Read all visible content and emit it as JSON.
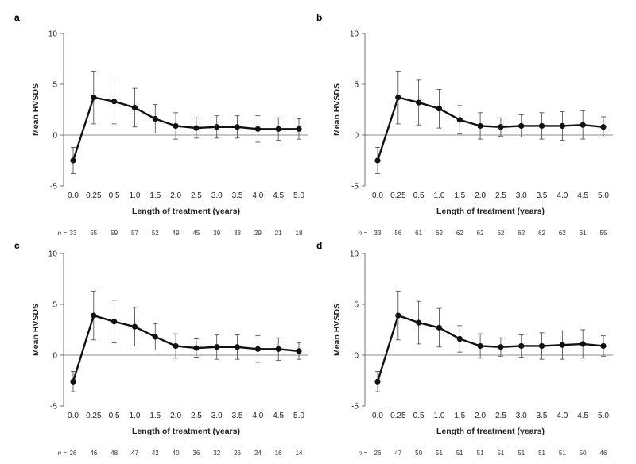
{
  "figure": {
    "n_prefix": "n ="
  },
  "chart_data": [
    {
      "type": "line",
      "panel_label": "a",
      "categories": [
        "0.0",
        "0.25",
        "0.5",
        "1.0",
        "1.5",
        "2.0",
        "2.5",
        "3.0",
        "3.5",
        "4.0",
        "4.5",
        "5.0"
      ],
      "series": [
        {
          "values": [
            -2.5,
            3.7,
            3.3,
            2.7,
            1.6,
            0.9,
            0.7,
            0.8,
            0.8,
            0.6,
            0.6,
            0.6
          ],
          "error": [
            1.3,
            2.6,
            2.2,
            1.9,
            1.4,
            1.3,
            1.0,
            1.1,
            1.1,
            1.3,
            1.1,
            1.0
          ]
        }
      ],
      "n": [
        "33",
        "55",
        "59",
        "57",
        "52",
        "49",
        "45",
        "39",
        "33",
        "29",
        "21",
        "18"
      ],
      "xlabel": "Length of treatment (years)",
      "ylabel": "Mean HVSDS",
      "ylim": [
        -5,
        10
      ],
      "yticks": [
        "10",
        "5",
        "0",
        "-5"
      ]
    },
    {
      "type": "line",
      "panel_label": "b",
      "categories": [
        "0.0",
        "0.25",
        "0.5",
        "1.0",
        "1.5",
        "2.0",
        "2.5",
        "3.0",
        "3.5",
        "4.0",
        "4.5",
        "5.0"
      ],
      "series": [
        {
          "values": [
            -2.5,
            3.7,
            3.2,
            2.6,
            1.5,
            0.9,
            0.8,
            0.9,
            0.9,
            0.9,
            1.0,
            0.8
          ],
          "error": [
            1.3,
            2.6,
            2.2,
            1.9,
            1.4,
            1.3,
            0.9,
            1.1,
            1.3,
            1.4,
            1.4,
            1.0
          ]
        }
      ],
      "n": [
        "33",
        "56",
        "61",
        "62",
        "62",
        "62",
        "62",
        "62",
        "62",
        "62",
        "61",
        "55"
      ],
      "xlabel": "Length of treatment (years)",
      "ylabel": "Mean HVSDS",
      "ylim": [
        -5,
        10
      ],
      "yticks": [
        "10",
        "5",
        "0",
        "-5"
      ]
    },
    {
      "type": "line",
      "panel_label": "c",
      "categories": [
        "0.0",
        "0.25",
        "0.5",
        "1.0",
        "1.5",
        "2.0",
        "2.5",
        "3.0",
        "3.5",
        "4.0",
        "4.5",
        "5.0"
      ],
      "series": [
        {
          "values": [
            -2.6,
            3.9,
            3.3,
            2.8,
            1.8,
            0.9,
            0.7,
            0.8,
            0.8,
            0.6,
            0.6,
            0.4
          ],
          "error": [
            1.0,
            2.4,
            2.1,
            1.9,
            1.3,
            1.2,
            0.9,
            1.2,
            1.2,
            1.3,
            1.1,
            0.8
          ]
        }
      ],
      "n": [
        "26",
        "46",
        "48",
        "47",
        "42",
        "40",
        "36",
        "32",
        "26",
        "24",
        "16",
        "14"
      ],
      "xlabel": "Length of treatment (years)",
      "ylabel": "Mean HVSDS",
      "ylim": [
        -5,
        10
      ],
      "yticks": [
        "10",
        "5",
        "0",
        "-5"
      ]
    },
    {
      "type": "line",
      "panel_label": "d",
      "categories": [
        "0.0",
        "0.25",
        "0.5",
        "1.0",
        "1.5",
        "2.0",
        "2.5",
        "3.0",
        "3.5",
        "4.0",
        "4.5",
        "5.0"
      ],
      "series": [
        {
          "values": [
            -2.6,
            3.9,
            3.2,
            2.7,
            1.6,
            0.9,
            0.8,
            0.9,
            0.9,
            1.0,
            1.1,
            0.9
          ],
          "error": [
            1.0,
            2.4,
            2.1,
            1.9,
            1.3,
            1.2,
            0.9,
            1.1,
            1.3,
            1.4,
            1.4,
            1.0
          ]
        }
      ],
      "n": [
        "26",
        "47",
        "50",
        "51",
        "51",
        "51",
        "51",
        "51",
        "51",
        "51",
        "50",
        "46"
      ],
      "xlabel": "Length of treatment (years)",
      "ylabel": "Mean HVSDS",
      "ylim": [
        -5,
        10
      ],
      "yticks": [
        "10",
        "5",
        "0",
        "-5"
      ]
    }
  ]
}
